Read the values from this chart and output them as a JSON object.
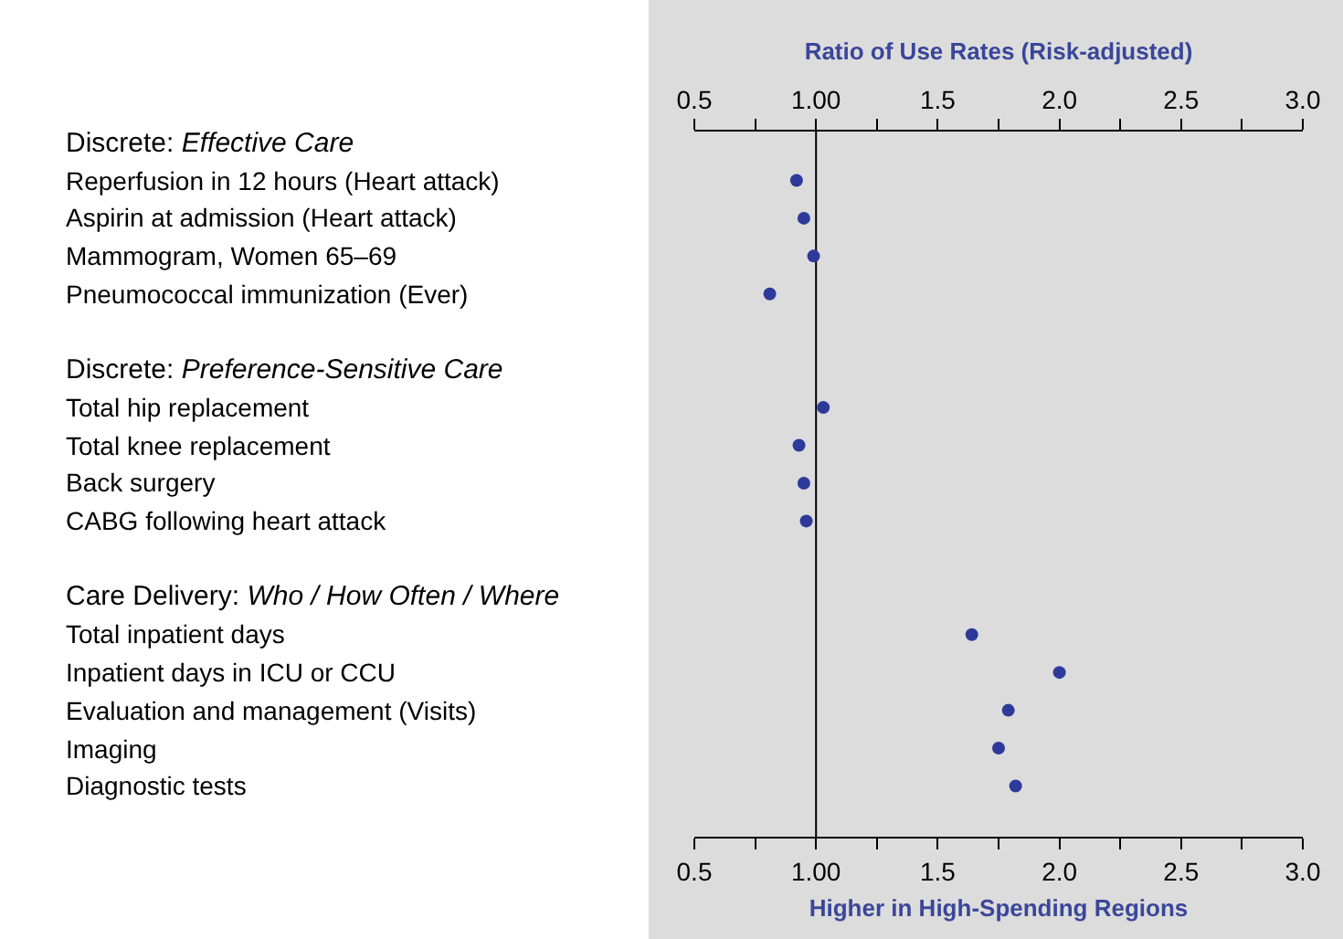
{
  "chart_data": {
    "type": "scatter",
    "x2label": "Ratio of Use Rates (Risk-adjusted)",
    "xlabel": "Higher in High-Spending Regions",
    "categories": [
      "Discrete: Effective Care",
      "Reperfusion in 12 hours (Heart attack)",
      "Aspirin at admission (Heart attack)",
      "Mammogram, Women 65–69",
      "Pneumococcal immunization (Ever)",
      null,
      "Discrete: Preference-Sensitive Care",
      "Total hip replacement",
      "Total knee replacement",
      "Back surgery",
      "CABG following heart attack",
      null,
      "Care Delivery: Who / How Often / Where",
      "Total inpatient days",
      "Inpatient days in ICU or CCU",
      "Evaluation and management (Visits)",
      "Imaging",
      "Diagnostic tests"
    ],
    "series": [
      {
        "color": "#2e3a9a",
        "values": [
          null,
          0.92,
          0.95,
          0.99,
          0.81,
          null,
          null,
          1.03,
          0.93,
          0.95,
          0.96,
          null,
          null,
          1.64,
          2.0,
          1.79,
          1.75,
          1.82
        ]
      }
    ],
    "orientation": "horizontal",
    "marker": "circle",
    "xlim": [
      0.5,
      3.0
    ],
    "xticks": [
      0.5,
      {
        "value": 0.75,
        "label": null
      },
      {
        "value": 1,
        "label": "1.00"
      },
      {
        "value": 1.25,
        "label": null
      },
      1.5,
      {
        "value": 1.75,
        "label": null
      },
      {
        "value": 2,
        "label": "2.0"
      },
      {
        "value": 2.25,
        "label": null
      },
      2.5,
      {
        "value": 2.75,
        "label": null
      },
      {
        "value": 3,
        "label": "3.0"
      }
    ],
    "x2lim": [
      0.5,
      3.0
    ],
    "x2ticks": [
      0.5,
      {
        "value": 0.75,
        "label": null
      },
      {
        "value": 1,
        "label": "1.00"
      },
      {
        "value": 1.25,
        "label": null
      },
      1.5,
      {
        "value": 1.75,
        "label": null
      },
      {
        "value": 2,
        "label": "2.0"
      },
      {
        "value": 2.25,
        "label": null
      },
      2.5,
      {
        "value": 2.75,
        "label": null
      },
      {
        "value": 3,
        "label": "3.0"
      }
    ],
    "ref_lines": [
      {
        "axis": "x",
        "value": 1.0,
        "color": "#000000"
      }
    ],
    "grid": false,
    "legend": false
  }
}
